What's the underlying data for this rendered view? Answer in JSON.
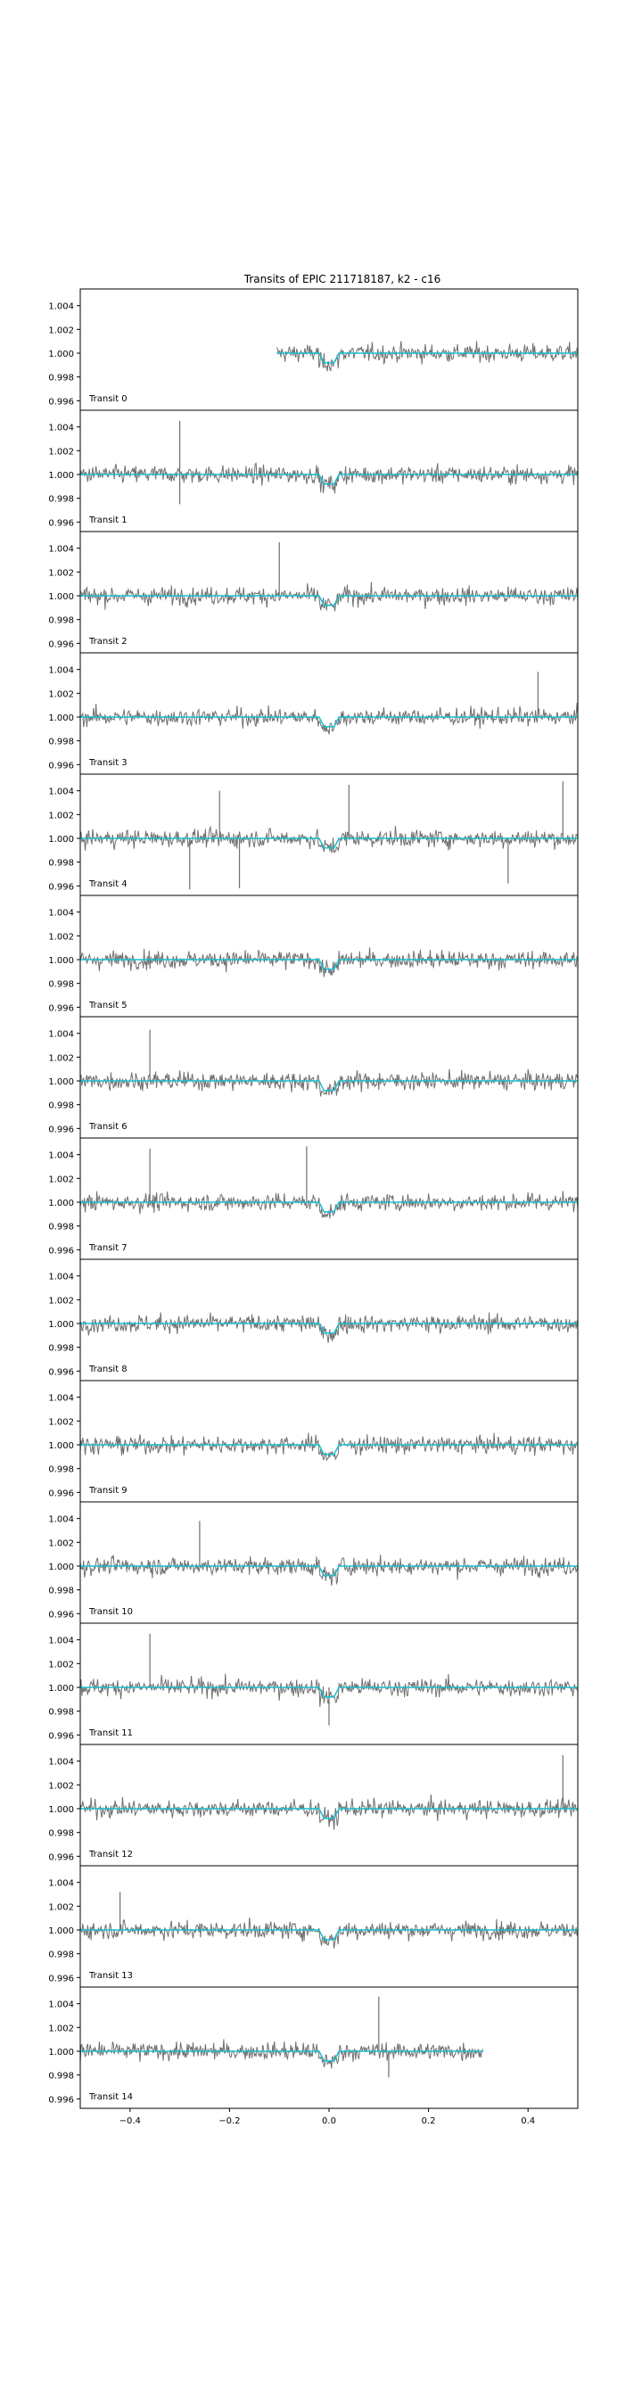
{
  "chart_data": {
    "type": "line",
    "title": "Transits of EPIC 211718187, k2 - c16",
    "xlim": [
      -0.5,
      0.5
    ],
    "ylim": [
      0.9952,
      1.0054
    ],
    "shared_x_ticks": [
      "−0.4",
      "−0.2",
      "0.0",
      "0.2",
      "0.4"
    ],
    "shared_x_values": [
      -0.4,
      -0.2,
      0.0,
      0.2,
      0.4
    ],
    "y_ticks": [
      "0.996",
      "0.998",
      "1.000",
      "1.002",
      "1.004"
    ],
    "y_values": [
      0.996,
      0.998,
      1.0,
      1.002,
      1.004
    ],
    "flux_color": "#6f6f6f",
    "model_color": "#17becf",
    "transit_depth": 0.0008,
    "transit_duration": 0.04,
    "noise_sigma": 0.00095,
    "panels": [
      {
        "label": "Transit 0",
        "x_range": [
          -0.105,
          0.5
        ],
        "outliers": []
      },
      {
        "label": "Transit 1",
        "x_range": [
          -0.5,
          0.5
        ],
        "outliers": [
          [
            -0.3,
            1.0045
          ],
          [
            -0.3,
            0.9975
          ]
        ]
      },
      {
        "label": "Transit 2",
        "x_range": [
          -0.5,
          0.5
        ],
        "outliers": [
          [
            -0.1,
            1.0045
          ]
        ]
      },
      {
        "label": "Transit 3",
        "x_range": [
          -0.5,
          0.5
        ],
        "outliers": [
          [
            0.42,
            1.0038
          ]
        ]
      },
      {
        "label": "Transit 4",
        "x_range": [
          -0.5,
          0.5
        ],
        "outliers": [
          [
            -0.28,
            0.9957
          ],
          [
            -0.18,
            0.9958
          ],
          [
            -0.22,
            1.004
          ],
          [
            0.04,
            1.0045
          ],
          [
            0.36,
            0.9962
          ],
          [
            0.47,
            1.0048
          ]
        ]
      },
      {
        "label": "Transit 5",
        "x_range": [
          -0.5,
          0.5
        ],
        "outliers": []
      },
      {
        "label": "Transit 6",
        "x_range": [
          -0.5,
          0.5
        ],
        "outliers": [
          [
            -0.36,
            1.0043
          ]
        ]
      },
      {
        "label": "Transit 7",
        "x_range": [
          -0.5,
          0.5
        ],
        "outliers": [
          [
            -0.36,
            1.0045
          ],
          [
            -0.045,
            1.0047
          ]
        ]
      },
      {
        "label": "Transit 8",
        "x_range": [
          -0.5,
          0.5
        ],
        "outliers": []
      },
      {
        "label": "Transit 9",
        "x_range": [
          -0.5,
          0.5
        ],
        "outliers": []
      },
      {
        "label": "Transit 10",
        "x_range": [
          -0.5,
          0.5
        ],
        "outliers": [
          [
            -0.26,
            1.0038
          ]
        ]
      },
      {
        "label": "Transit 11",
        "x_range": [
          -0.5,
          0.5
        ],
        "outliers": [
          [
            -0.36,
            1.0045
          ],
          [
            0.0,
            0.9968
          ]
        ]
      },
      {
        "label": "Transit 12",
        "x_range": [
          -0.5,
          0.5
        ],
        "outliers": [
          [
            0.47,
            1.0045
          ]
        ]
      },
      {
        "label": "Transit 13",
        "x_range": [
          -0.5,
          0.5
        ],
        "outliers": [
          [
            -0.42,
            1.0032
          ]
        ]
      },
      {
        "label": "Transit 14",
        "x_range": [
          -0.5,
          0.31
        ],
        "outliers": [
          [
            0.1,
            1.0046
          ],
          [
            0.12,
            0.9978
          ]
        ]
      }
    ]
  }
}
